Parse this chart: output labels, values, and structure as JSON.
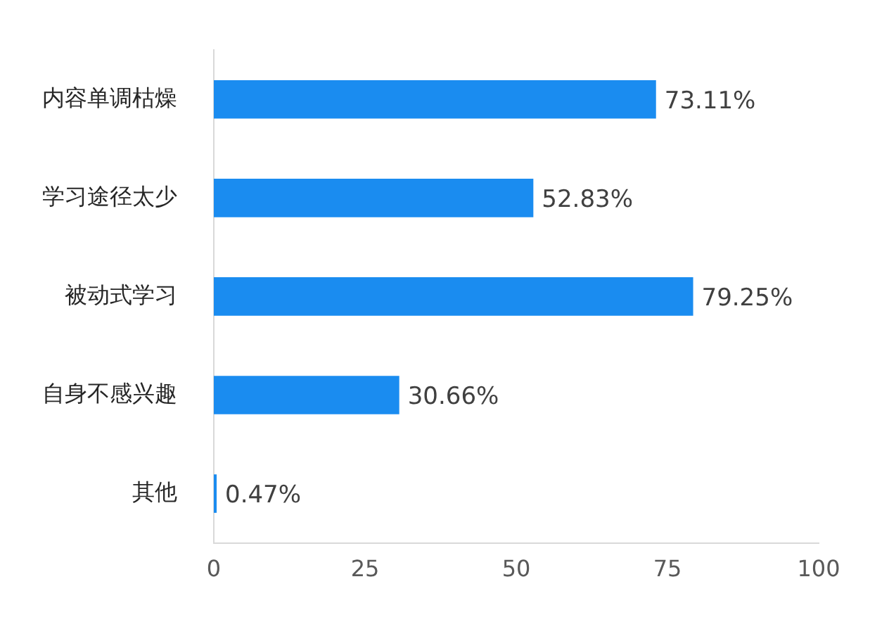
{
  "chart_data": {
    "type": "bar",
    "orientation": "horizontal",
    "categories": [
      "内容单调枯燥",
      "学习途径太少",
      "被动式学习",
      "自身不感兴趣",
      "其他"
    ],
    "values": [
      73.11,
      52.83,
      79.25,
      30.66,
      0.47
    ],
    "value_labels": [
      "73.11%",
      "52.83%",
      "79.25%",
      "30.66%",
      "0.47%"
    ],
    "color": "#1a8cf0",
    "xlim": [
      0,
      100
    ],
    "xticks": [
      0,
      25,
      50,
      75,
      100
    ],
    "grid": false,
    "legend": false
  }
}
